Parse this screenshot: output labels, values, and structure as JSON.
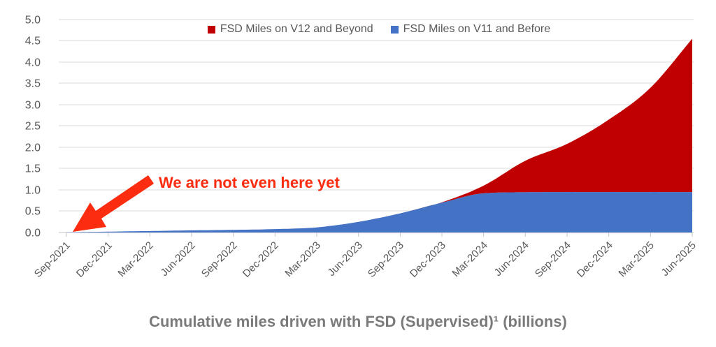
{
  "chart_data": {
    "type": "area",
    "stacked": true,
    "title": "Cumulative miles driven with FSD (Supervised)¹ (billions)",
    "xlabel": "",
    "ylabel": "",
    "ylim": [
      0,
      5
    ],
    "y_tick_step": 0.5,
    "grid": "horizontal",
    "legend_position": "top-center",
    "y_tick_labels": [
      "5.0",
      "4.5",
      "4.0",
      "3.5",
      "3.0",
      "2.5",
      "2.0",
      "1.5",
      "1.0",
      "0.5",
      "0.0"
    ],
    "categories": [
      "Sep-2021",
      "Dec-2021",
      "Mar-2022",
      "Jun-2022",
      "Sep-2022",
      "Dec-2022",
      "Mar-2023",
      "Jun-2023",
      "Sep-2023",
      "Dec-2023",
      "Mar-2024",
      "Jun-2024",
      "Sep-2024",
      "Dec-2024",
      "Mar-2025",
      "Jun-2025"
    ],
    "series": [
      {
        "name": "FSD Miles on V12 and Beyond",
        "color": "#c00000",
        "values": [
          0,
          0,
          0,
          0,
          0,
          0,
          0,
          0,
          0,
          0.01,
          0.18,
          0.74,
          1.13,
          1.7,
          2.45,
          3.6
        ]
      },
      {
        "name": "FSD Miles on V11 and Before",
        "color": "#4472c4",
        "values": [
          0.005,
          0.02,
          0.035,
          0.05,
          0.062,
          0.08,
          0.12,
          0.25,
          0.45,
          0.7,
          0.92,
          0.945,
          0.95,
          0.95,
          0.95,
          0.95
        ]
      }
    ],
    "annotation": {
      "text": "We are not even here yet",
      "color": "#fb2c10",
      "points_to": "Sep-2021 at 0.0 (origin of the curve)"
    },
    "axis_label_color": "#595959",
    "gridline_color": "#d9d9d9"
  }
}
